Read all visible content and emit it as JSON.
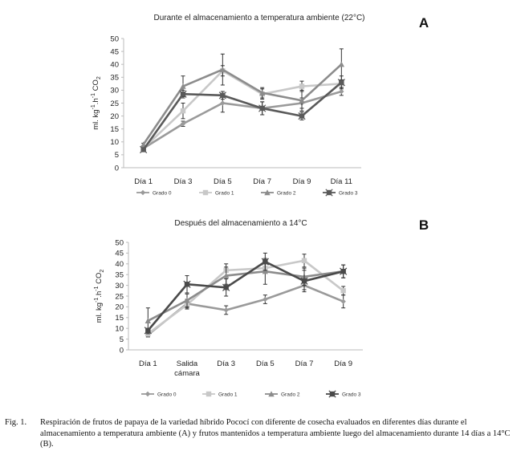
{
  "chart_data": [
    {
      "type": "line",
      "panel": "A",
      "title": "Durante el almacenamiento a temperatura ambiente (22°C)",
      "ylabel": "ml. kg-1.h-1 CO2",
      "ylim": [
        0,
        50
      ],
      "yticks": [
        0,
        5,
        10,
        15,
        20,
        25,
        30,
        35,
        40,
        45,
        50
      ],
      "categories": [
        [
          "Día 1"
        ],
        [
          "Día 3"
        ],
        [
          "Día 5"
        ],
        [
          "Día 7"
        ],
        [
          "Día 9"
        ],
        [
          "Día 11"
        ]
      ],
      "series": [
        {
          "name": "Grado 0",
          "marker": "diamond",
          "color": "#9a9a9a",
          "values": [
            7.5,
            17,
            25,
            23,
            25,
            29.5
          ],
          "errors": [
            0.5,
            1,
            3.5,
            2.5,
            2,
            1.5
          ]
        },
        {
          "name": "Grado 1",
          "marker": "square",
          "color": "#c8c8c8",
          "values": [
            7.5,
            22,
            37.5,
            28.5,
            31.5,
            32.5
          ],
          "errors": [
            0.5,
            3,
            2,
            2,
            2,
            1.5
          ]
        },
        {
          "name": "Grado 2",
          "marker": "triangle",
          "color": "#8c8c8c",
          "values": [
            9,
            31.5,
            38,
            29,
            26,
            40
          ],
          "errors": [
            0.5,
            4,
            6,
            2,
            4,
            6
          ]
        },
        {
          "name": "Grado 3",
          "marker": "x",
          "color": "#5a5a5a",
          "values": [
            7,
            28.5,
            28,
            23,
            20,
            33
          ],
          "errors": [
            0.5,
            1.5,
            1.5,
            2.5,
            1.5,
            2.5
          ]
        }
      ]
    },
    {
      "type": "line",
      "panel": "B",
      "title": "Después del almacenamiento a 14°C",
      "ylabel": "ml. kg-1.h-1 CO2",
      "ylim": [
        0,
        50
      ],
      "yticks": [
        0,
        5,
        10,
        15,
        20,
        25,
        30,
        35,
        40,
        45,
        50
      ],
      "categories": [
        [
          "Día 1"
        ],
        [
          "Salida",
          "cámara"
        ],
        [
          "Día 3"
        ],
        [
          "Día 5"
        ],
        [
          "Día 7"
        ],
        [
          "Día 9"
        ]
      ],
      "series": [
        {
          "name": "Grado 0",
          "marker": "diamond",
          "color": "#9a9a9a",
          "values": [
            7,
            21.5,
            18.5,
            23.5,
            30,
            22.5
          ],
          "errors": [
            1,
            2,
            2,
            2,
            2,
            3
          ]
        },
        {
          "name": "Grado 1",
          "marker": "square",
          "color": "#c8c8c8",
          "values": [
            7.5,
            21,
            37,
            38,
            41.5,
            27.5
          ],
          "errors": [
            1,
            2,
            3,
            2,
            3,
            2
          ]
        },
        {
          "name": "Grado 2",
          "marker": "triangle",
          "color": "#8c8c8c",
          "values": [
            13.5,
            23,
            34.5,
            36.5,
            34,
            36.5
          ],
          "errors": [
            6,
            3,
            4,
            6,
            4,
            3
          ]
        },
        {
          "name": "Grado 3",
          "marker": "x",
          "color": "#4a4a4a",
          "values": [
            9,
            30.5,
            29,
            41,
            32,
            36.5
          ],
          "errors": [
            1,
            4,
            4,
            4,
            5,
            3
          ]
        }
      ]
    }
  ],
  "caption": {
    "label": "Fig. 1.",
    "text": "Respiración de frutos de papaya de la variedad híbrido Pococí con diferente de cosecha evaluados en diferentes días durante el almacenamiento a temperatura ambiente (A) y frutos mantenidos a temperatura ambiente luego del almacenamiento durante 14 días a 14°C (B)."
  }
}
